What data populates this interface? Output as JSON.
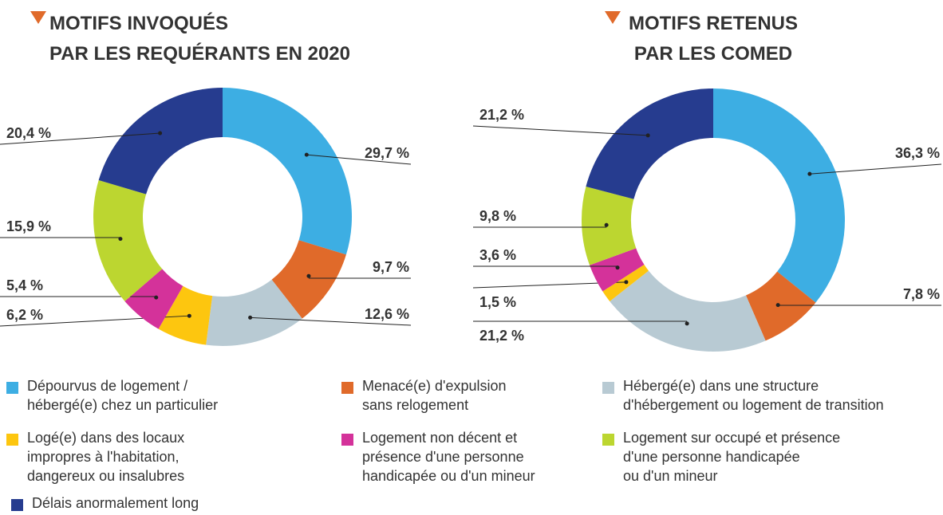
{
  "chart_data": [
    {
      "type": "donut",
      "title": "MOTIFS INVOQUÉS\nPAR LES REQUÉRANTS EN 2020",
      "values": [
        29.7,
        9.7,
        12.6,
        6.2,
        5.4,
        15.9,
        20.4
      ],
      "value_labels": [
        "29,7 %",
        "9,7 %",
        "12,6 %",
        "6,2 %",
        "5,4 %",
        "15,9 %",
        "20,4 %"
      ]
    },
    {
      "type": "donut",
      "title": "MOTIFS RETENUS\nPAR LES COMED",
      "values": [
        36.3,
        7.8,
        21.2,
        1.5,
        3.6,
        9.8,
        21.2
      ],
      "value_labels": [
        "36,3 %",
        "7,8 %",
        "21,2 %",
        "1,5 %",
        "3,6 %",
        "9,8 %",
        "21,2 %"
      ]
    }
  ],
  "legend": {
    "labels": [
      "Dépourvus de logement /\nhébergé(e) chez un particulier",
      "Menacé(e) d'expulsion\nsans relogement",
      "Hébergé(e) dans une structure\nd'hébergement ou logement de transition",
      "Logé(e) dans des locaux\nimpropres à l'habitation,\ndangereux ou insalubres",
      "Logement non décent et\nprésence d'une personne\nhandicapée ou d'un mineur",
      "Logement sur occupé et présence\nd'une personne handicapée\nou d'un mineur",
      "Délais anormalement long"
    ],
    "colors": [
      "#3daee3",
      "#e06a2a",
      "#b8cad3",
      "#fdc60f",
      "#d4329a",
      "#bcd630",
      "#263c8f"
    ]
  }
}
